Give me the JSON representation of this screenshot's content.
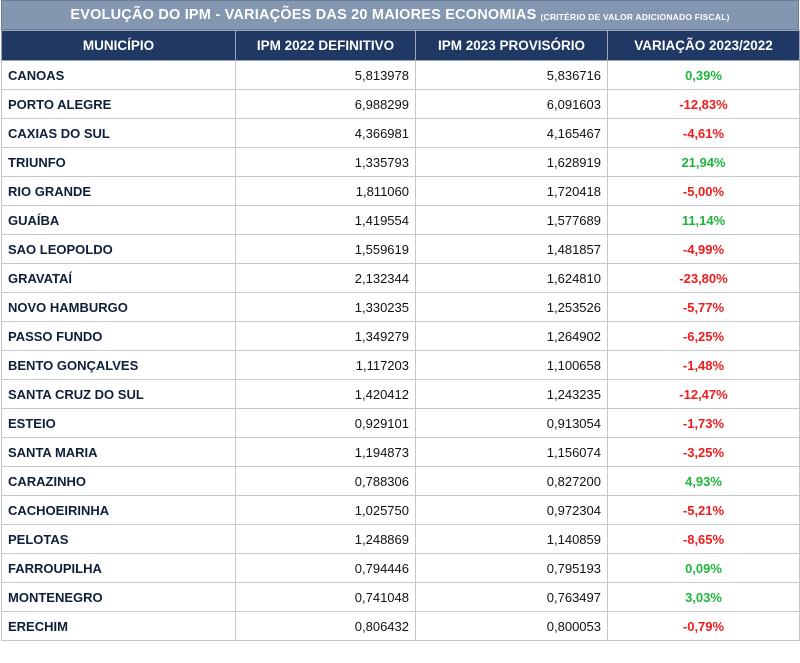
{
  "title": {
    "main": "EVOLUÇÃO DO IPM - VARIAÇÕES DAS 20 MAIORES ECONOMIAS",
    "sub": "(CRITÉRIO DE VALOR ADICIONADO FISCAL)"
  },
  "columns": [
    "MUNICÍPIO",
    "IPM 2022 DEFINITIVO",
    "IPM 2023 PROVISÓRIO",
    "VARIAÇÃO 2023/2022"
  ],
  "colors": {
    "positive": "#1db53a",
    "negative": "#ee1c1c",
    "header_bg": "#1f3864",
    "title_bg": "#8497b0"
  },
  "rows": [
    {
      "municipio": "CANOAS",
      "ipm2022": "5,813978",
      "ipm2023": "5,836716",
      "variacao": "0,39%",
      "sign": "pos"
    },
    {
      "municipio": "PORTO ALEGRE",
      "ipm2022": "6,988299",
      "ipm2023": "6,091603",
      "variacao": "-12,83%",
      "sign": "neg"
    },
    {
      "municipio": "CAXIAS DO SUL",
      "ipm2022": "4,366981",
      "ipm2023": "4,165467",
      "variacao": "-4,61%",
      "sign": "neg"
    },
    {
      "municipio": "TRIUNFO",
      "ipm2022": "1,335793",
      "ipm2023": "1,628919",
      "variacao": "21,94%",
      "sign": "pos"
    },
    {
      "municipio": "RIO GRANDE",
      "ipm2022": "1,811060",
      "ipm2023": "1,720418",
      "variacao": "-5,00%",
      "sign": "neg"
    },
    {
      "municipio": "GUAÍBA",
      "ipm2022": "1,419554",
      "ipm2023": "1,577689",
      "variacao": "11,14%",
      "sign": "pos"
    },
    {
      "municipio": "SAO LEOPOLDO",
      "ipm2022": "1,559619",
      "ipm2023": "1,481857",
      "variacao": "-4,99%",
      "sign": "neg"
    },
    {
      "municipio": "GRAVATAÍ",
      "ipm2022": "2,132344",
      "ipm2023": "1,624810",
      "variacao": "-23,80%",
      "sign": "neg"
    },
    {
      "municipio": "NOVO HAMBURGO",
      "ipm2022": "1,330235",
      "ipm2023": "1,253526",
      "variacao": "-5,77%",
      "sign": "neg"
    },
    {
      "municipio": "PASSO FUNDO",
      "ipm2022": "1,349279",
      "ipm2023": "1,264902",
      "variacao": "-6,25%",
      "sign": "neg"
    },
    {
      "municipio": "BENTO GONÇALVES",
      "ipm2022": "1,117203",
      "ipm2023": "1,100658",
      "variacao": "-1,48%",
      "sign": "neg"
    },
    {
      "municipio": "SANTA CRUZ DO SUL",
      "ipm2022": "1,420412",
      "ipm2023": "1,243235",
      "variacao": "-12,47%",
      "sign": "neg"
    },
    {
      "municipio": "ESTEIO",
      "ipm2022": "0,929101",
      "ipm2023": "0,913054",
      "variacao": "-1,73%",
      "sign": "neg"
    },
    {
      "municipio": "SANTA MARIA",
      "ipm2022": "1,194873",
      "ipm2023": "1,156074",
      "variacao": "-3,25%",
      "sign": "neg"
    },
    {
      "municipio": "CARAZINHO",
      "ipm2022": "0,788306",
      "ipm2023": "0,827200",
      "variacao": "4,93%",
      "sign": "pos"
    },
    {
      "municipio": "CACHOEIRINHA",
      "ipm2022": "1,025750",
      "ipm2023": "0,972304",
      "variacao": "-5,21%",
      "sign": "neg"
    },
    {
      "municipio": "PELOTAS",
      "ipm2022": "1,248869",
      "ipm2023": "1,140859",
      "variacao": "-8,65%",
      "sign": "neg"
    },
    {
      "municipio": "FARROUPILHA",
      "ipm2022": "0,794446",
      "ipm2023": "0,795193",
      "variacao": "0,09%",
      "sign": "pos"
    },
    {
      "municipio": "MONTENEGRO",
      "ipm2022": "0,741048",
      "ipm2023": "0,763497",
      "variacao": "3,03%",
      "sign": "pos"
    },
    {
      "municipio": "ERECHIM",
      "ipm2022": "0,806432",
      "ipm2023": "0,800053",
      "variacao": "-0,79%",
      "sign": "neg"
    }
  ]
}
